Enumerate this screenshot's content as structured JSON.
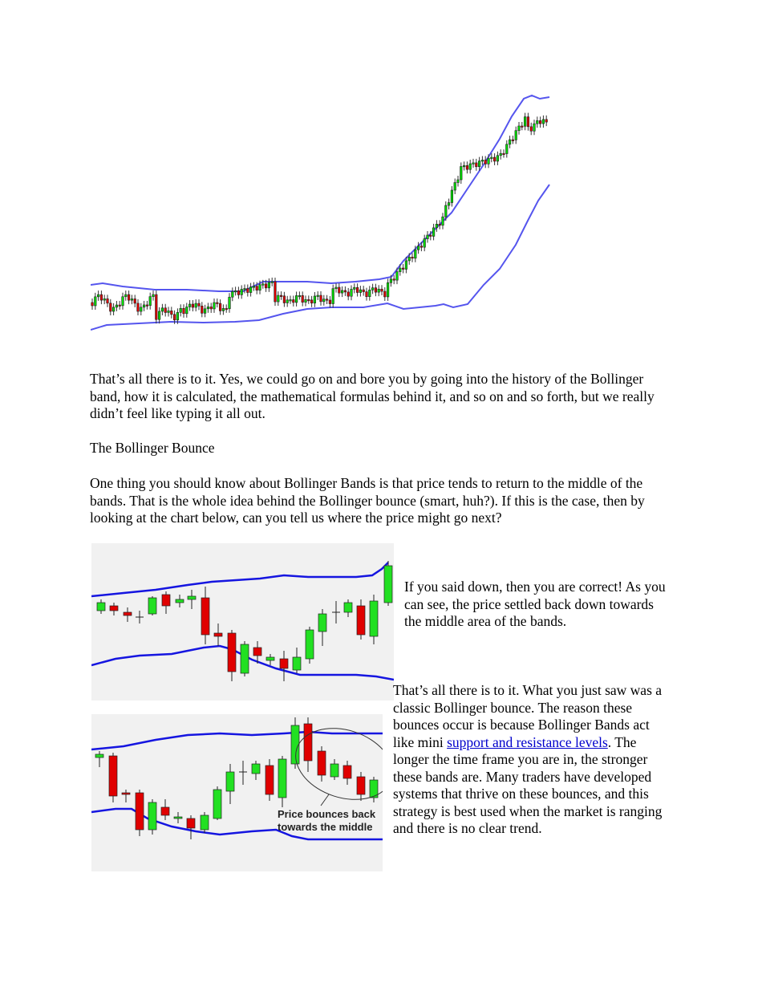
{
  "figures": {
    "top_chart": {
      "description_icon": "bollinger-uptrend-candlestick-chart",
      "band_color": "#5555ee",
      "up_color": "#00dd00",
      "down_color": "#dd0000"
    },
    "bounce_chart_1": {
      "description_icon": "bollinger-bounce-candlestick-chart",
      "band_color": "#1515e0",
      "background": "#f1f1f1"
    },
    "bounce_chart_2": {
      "description_icon": "bollinger-bounce-annotated-chart",
      "annotation": "Price bounces back towards the middle",
      "annotation_line1": "Price bounces back",
      "annotation_line2": "towards the middle",
      "band_color": "#1515e0",
      "background": "#f1f1f1"
    }
  },
  "paragraphs": {
    "intro": "That’s all there is to it. Yes, we could go on and bore you by going into the history of the Bollinger band, how it is calculated, the mathematical formulas behind it, and so on and so forth, but we really didn’t feel like typing it all out.",
    "heading": "The Bollinger Bounce",
    "bounce_intro": "One thing you should know about Bollinger Bands is that price tends to return to the middle of the bands. That is the whole idea behind the Bollinger bounce (smart, huh?).  If this is the case, then by looking at the chart below, can you tell us where the price might go next?",
    "answer": "If you said down, then you are correct!  As you can see, the price settled back down towards the middle area of the bands.",
    "conclusion_before_link": "That’s all there is to it. What you just saw was a classic Bollinger bounce.  The reason these bounces occur is because Bollinger Bands act like mini ",
    "conclusion_link": "support and resistance levels",
    "conclusion_after_link": ". The longer the time frame you are in, the stronger these bands are.  Many traders have developed systems that thrive on these bounces, and this strategy is best used when the market is ranging and there is no clear trend."
  }
}
